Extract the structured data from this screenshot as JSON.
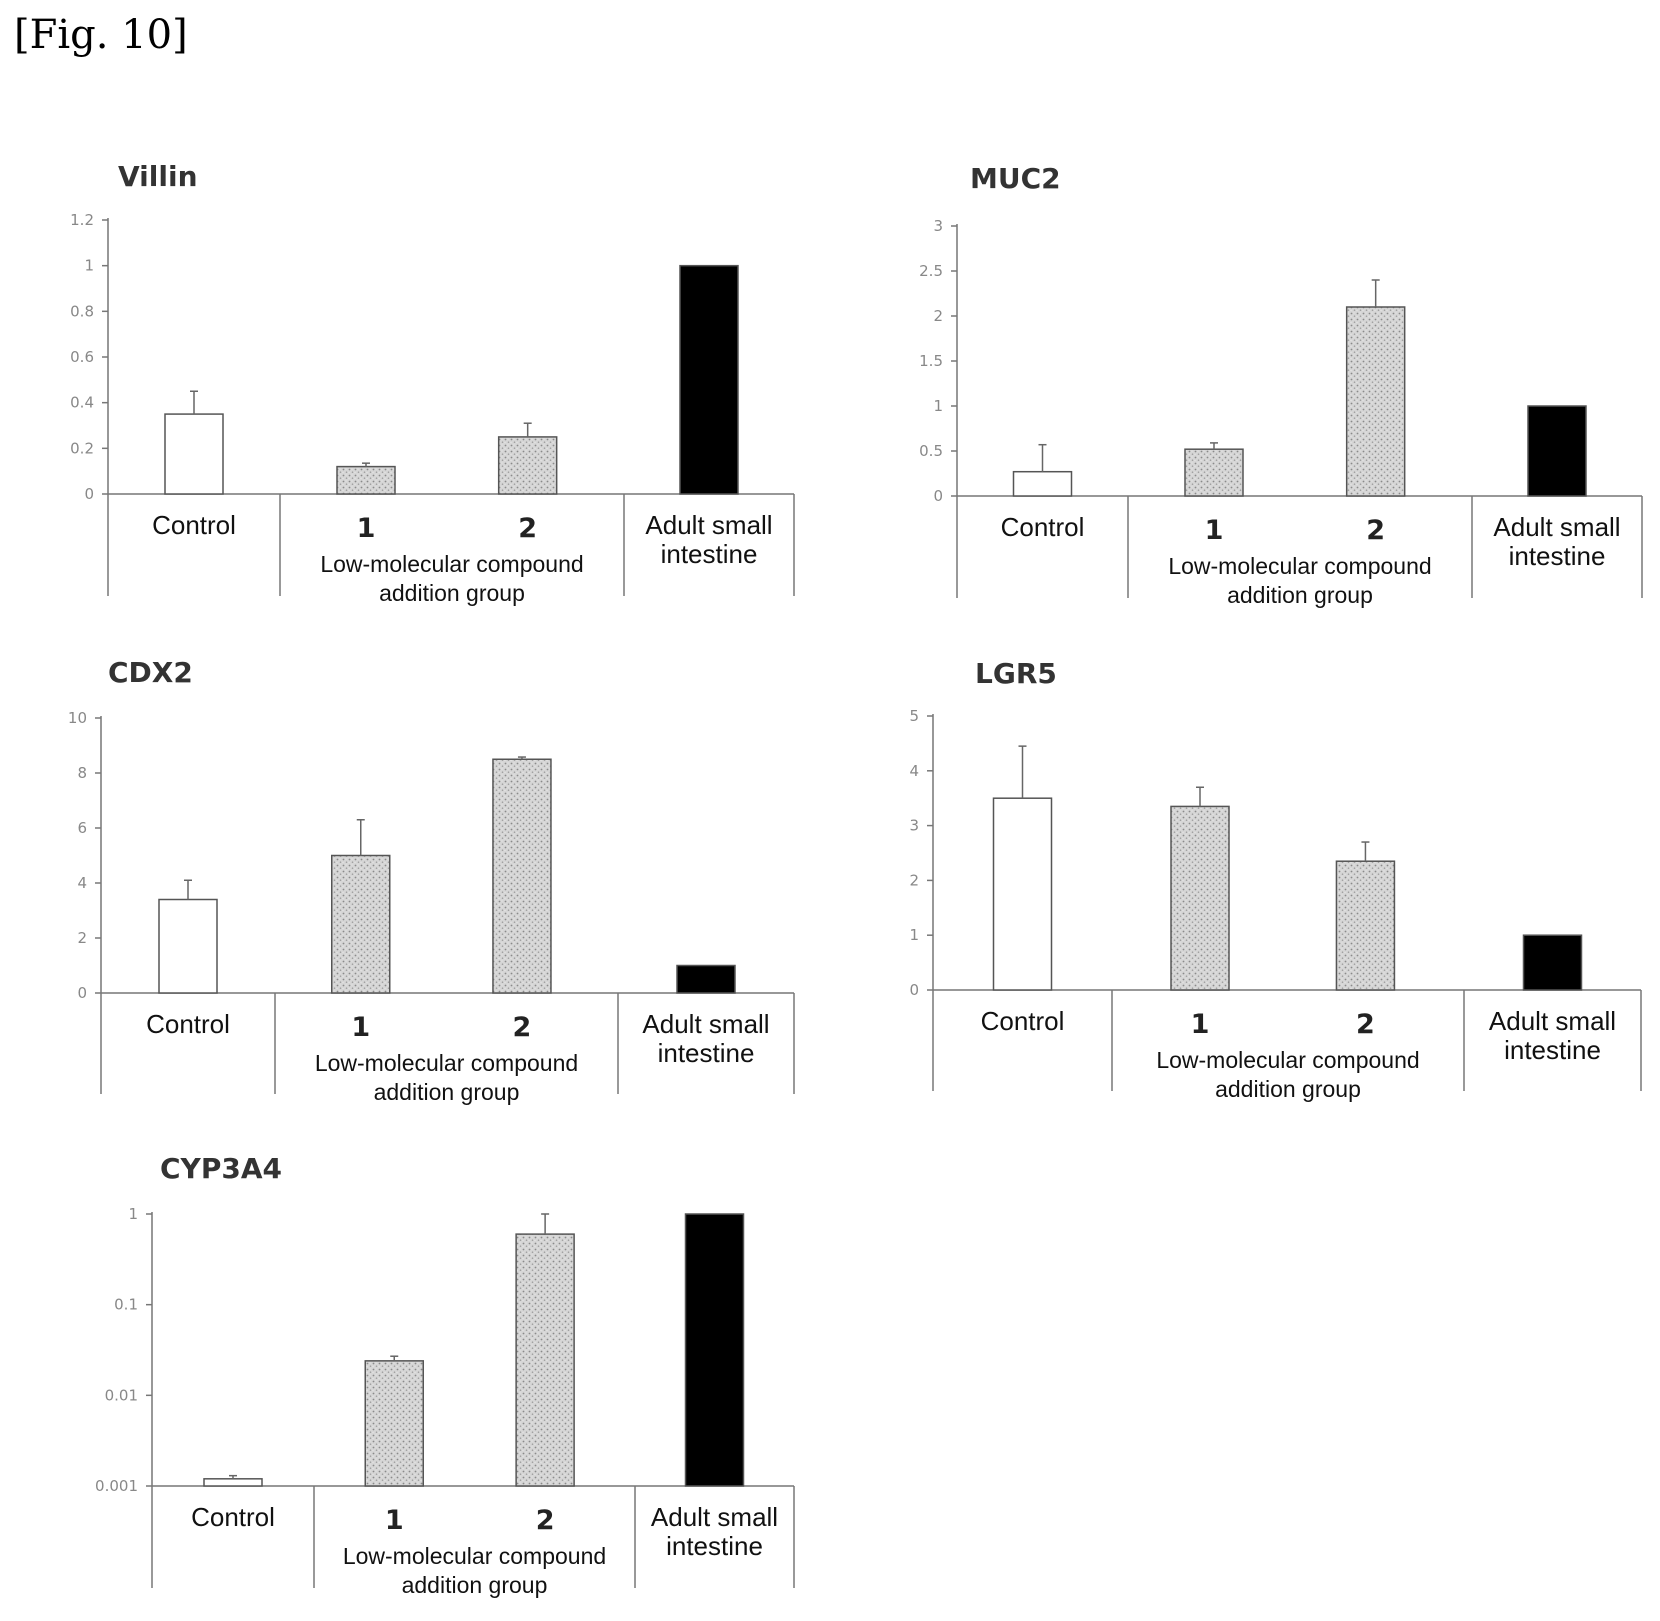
{
  "figure_label": "[Fig. 10]",
  "colors": {
    "control": "#ffffff",
    "compound": "#d4d4d4",
    "adult": "#000000",
    "axis": "#777777"
  },
  "labels": {
    "control": "Control",
    "group1": "1",
    "group2": "2",
    "group_line1": "Low-molecular compound",
    "group_line2": "addition group",
    "adult_line1": "Adult small",
    "adult_line2": "intestine"
  },
  "chart_data": [
    {
      "type": "bar",
      "title": "Villin",
      "categories": [
        "Control",
        "1",
        "2",
        "Adult small intestine"
      ],
      "values": [
        0.35,
        0.12,
        0.25,
        1.0
      ],
      "errors": [
        0.1,
        0.015,
        0.06,
        0
      ],
      "yscale": "linear",
      "ylim": [
        0,
        1.2
      ],
      "yticks": [
        "0",
        "0.2",
        "0.4",
        "0.6",
        "0.8",
        "1",
        "1.2"
      ],
      "ytick_values": [
        0,
        0.2,
        0.4,
        0.6,
        0.8,
        1.0,
        1.2
      ]
    },
    {
      "type": "bar",
      "title": "MUC2",
      "categories": [
        "Control",
        "1",
        "2",
        "Adult small intestine"
      ],
      "values": [
        0.27,
        0.52,
        2.1,
        1.0
      ],
      "errors": [
        0.3,
        0.07,
        0.3,
        0
      ],
      "yscale": "linear",
      "ylim": [
        0,
        3
      ],
      "yticks": [
        "0",
        "0.5",
        "1",
        "1.5",
        "2",
        "2.5",
        "3"
      ],
      "ytick_values": [
        0,
        0.5,
        1,
        1.5,
        2,
        2.5,
        3
      ]
    },
    {
      "type": "bar",
      "title": "CDX2",
      "categories": [
        "Control",
        "1",
        "2",
        "Adult small intestine"
      ],
      "values": [
        3.4,
        5.0,
        8.5,
        1.0
      ],
      "errors": [
        0.7,
        1.3,
        0.08,
        0
      ],
      "yscale": "linear",
      "ylim": [
        0,
        10
      ],
      "yticks": [
        "0",
        "2",
        "4",
        "6",
        "8",
        "10"
      ],
      "ytick_values": [
        0,
        2,
        4,
        6,
        8,
        10
      ]
    },
    {
      "type": "bar",
      "title": "LGR5",
      "categories": [
        "Control",
        "1",
        "2",
        "Adult small intestine"
      ],
      "values": [
        3.5,
        3.35,
        2.35,
        1.0
      ],
      "errors": [
        0.95,
        0.35,
        0.35,
        0
      ],
      "yscale": "linear",
      "ylim": [
        0,
        5
      ],
      "yticks": [
        "0",
        "1",
        "2",
        "3",
        "4",
        "5"
      ],
      "ytick_values": [
        0,
        1,
        2,
        3,
        4,
        5
      ]
    },
    {
      "type": "bar",
      "title": "CYP3A4",
      "categories": [
        "Control",
        "1",
        "2",
        "Adult small intestine"
      ],
      "values": [
        0.0012,
        0.024,
        0.6,
        1.0
      ],
      "errors": [
        0.0001,
        0.003,
        0.4,
        0
      ],
      "yscale": "log",
      "ylim": [
        0.001,
        1
      ],
      "yticks": [
        "0.001",
        "0.01",
        "0.1",
        "1"
      ],
      "ytick_values": [
        0.001,
        0.01,
        0.1,
        1
      ]
    }
  ]
}
